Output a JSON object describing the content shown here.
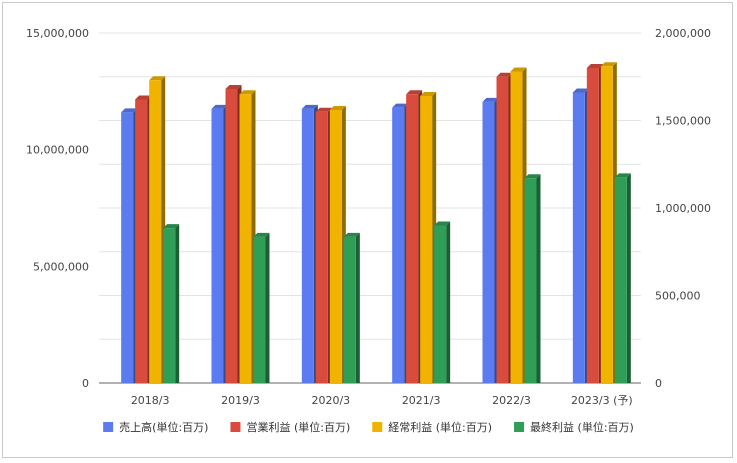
{
  "chart_data": {
    "type": "bar",
    "categories": [
      "2018/3",
      "2019/3",
      "2020/3",
      "2021/3",
      "2022/3",
      "2023/3 (予)"
    ],
    "y_left": {
      "ylim": [
        0,
        15000000
      ],
      "ticks": [
        "0",
        "5,000,000",
        "10,000,000",
        "15,000,000"
      ],
      "tick_values": [
        0,
        5000000,
        10000000,
        15000000
      ]
    },
    "y_right": {
      "ylim": [
        0,
        2000000
      ],
      "ticks": [
        "0",
        "500,000",
        "1,000,000",
        "1,500,000",
        "2,000,000"
      ],
      "tick_values": [
        0,
        500000,
        1000000,
        1500000,
        2000000
      ]
    },
    "grid": true,
    "legend_position": "bottom",
    "series": [
      {
        "name": "売上高(単位:百万)",
        "axis": "left",
        "color": "#5b7cf0",
        "values": [
          11600000,
          11750000,
          11750000,
          11800000,
          12050000,
          12450000
        ]
      },
      {
        "name": "営業利益 (単位:百万)",
        "axis": "right",
        "color": "#d94b3d",
        "values": [
          1620000,
          1680000,
          1550000,
          1650000,
          1750000,
          1800000
        ]
      },
      {
        "name": "経常利益 (単位:百万)",
        "axis": "right",
        "color": "#f0b400",
        "values": [
          1730000,
          1650000,
          1560000,
          1640000,
          1780000,
          1810000
        ]
      },
      {
        "name": "最終利益 (単位:百万)",
        "axis": "right",
        "color": "#2f9e57",
        "values": [
          885000,
          835000,
          835000,
          900000,
          1170000,
          1175000
        ]
      }
    ]
  }
}
